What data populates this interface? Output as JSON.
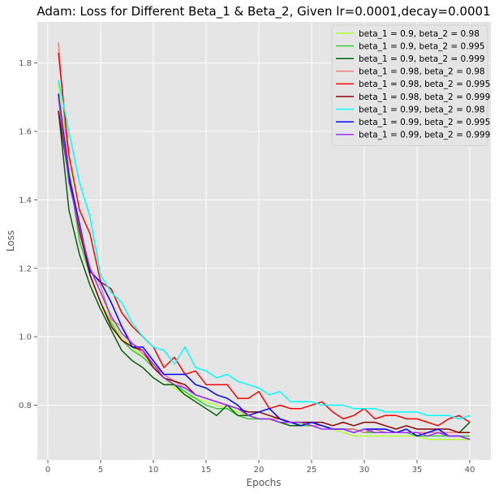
{
  "chart_data": {
    "type": "line",
    "title": "Adam: Loss for Different Beta_1 & Beta_2, Given lr=0.0001,decay=0.0001",
    "xlabel": "Epochs",
    "ylabel": "Loss",
    "xlim": [
      -1,
      42
    ],
    "ylim": [
      0.64,
      1.92
    ],
    "xticks": [
      0,
      5,
      10,
      15,
      20,
      25,
      30,
      35,
      40
    ],
    "yticks": [
      0.8,
      1.0,
      1.2,
      1.4,
      1.6,
      1.8
    ],
    "grid": true,
    "legend_position": "top-right",
    "x": [
      1,
      2,
      3,
      4,
      5,
      6,
      7,
      8,
      9,
      10,
      11,
      12,
      13,
      14,
      15,
      16,
      17,
      18,
      19,
      20,
      21,
      22,
      23,
      24,
      25,
      26,
      27,
      28,
      29,
      30,
      31,
      32,
      33,
      34,
      35,
      36,
      37,
      38,
      39,
      40
    ],
    "series": [
      {
        "name": "beta_1 = 0.9, beta_2 = 0.98",
        "color": "#adff2f",
        "values": [
          1.74,
          1.5,
          1.3,
          1.2,
          1.13,
          1.05,
          1.0,
          0.97,
          0.94,
          0.91,
          0.88,
          0.85,
          0.83,
          0.82,
          0.81,
          0.8,
          0.79,
          0.78,
          0.77,
          0.76,
          0.76,
          0.75,
          0.75,
          0.745,
          0.74,
          0.74,
          0.73,
          0.72,
          0.71,
          0.71,
          0.71,
          0.71,
          0.71,
          0.71,
          0.71,
          0.7,
          0.7,
          0.7,
          0.7,
          0.7
        ]
      },
      {
        "name": "beta_1 = 0.9, beta_2 = 0.995",
        "color": "#32cd32",
        "values": [
          1.7,
          1.48,
          1.28,
          1.18,
          1.1,
          1.04,
          0.99,
          0.96,
          0.94,
          0.91,
          0.88,
          0.86,
          0.84,
          0.82,
          0.8,
          0.79,
          0.79,
          0.77,
          0.76,
          0.76,
          0.76,
          0.75,
          0.75,
          0.74,
          0.74,
          0.74,
          0.73,
          0.73,
          0.73,
          0.72,
          0.72,
          0.72,
          0.72,
          0.72,
          0.71,
          0.71,
          0.71,
          0.71,
          0.71,
          0.71
        ]
      },
      {
        "name": "beta_1 = 0.9, beta_2 = 0.999",
        "color": "#006400",
        "values": [
          1.66,
          1.37,
          1.24,
          1.15,
          1.08,
          1.02,
          0.96,
          0.93,
          0.91,
          0.88,
          0.86,
          0.86,
          0.83,
          0.81,
          0.79,
          0.77,
          0.8,
          0.77,
          0.77,
          0.76,
          0.76,
          0.75,
          0.74,
          0.74,
          0.75,
          0.74,
          0.73,
          0.73,
          0.73,
          0.72,
          0.73,
          0.72,
          0.72,
          0.72,
          0.72,
          0.72,
          0.72,
          0.72,
          0.72,
          0.75
        ]
      },
      {
        "name": "beta_1 = 0.98, beta_2 = 0.98",
        "color": "#f08080",
        "values": [
          1.86,
          1.47,
          1.3,
          1.2,
          1.15,
          1.05,
          1.03,
          0.98,
          0.95,
          0.92,
          0.89,
          0.87,
          0.85,
          0.83,
          0.82,
          0.81,
          0.8,
          0.79,
          0.77,
          0.76,
          0.76,
          0.76,
          0.75,
          0.75,
          0.74,
          0.74,
          0.73,
          0.73,
          0.73,
          0.72,
          0.73,
          0.72,
          0.72,
          0.72,
          0.72,
          0.72,
          0.72,
          0.72,
          0.72,
          0.72
        ]
      },
      {
        "name": "beta_1 = 0.98, beta_2 = 0.995",
        "color": "#ff0000",
        "values": [
          1.83,
          1.53,
          1.37,
          1.3,
          1.16,
          1.14,
          1.07,
          1.03,
          1.0,
          0.97,
          0.91,
          0.94,
          0.89,
          0.9,
          0.86,
          0.86,
          0.86,
          0.82,
          0.82,
          0.84,
          0.79,
          0.8,
          0.79,
          0.79,
          0.8,
          0.81,
          0.78,
          0.76,
          0.77,
          0.79,
          0.76,
          0.77,
          0.77,
          0.76,
          0.76,
          0.75,
          0.74,
          0.76,
          0.77,
          0.75
        ]
      },
      {
        "name": "beta_1 = 0.98, beta_2 = 0.999",
        "color": "#8b0000",
        "values": [
          1.66,
          1.46,
          1.31,
          1.18,
          1.1,
          1.03,
          0.99,
          0.97,
          0.96,
          0.91,
          0.88,
          0.87,
          0.86,
          0.83,
          0.82,
          0.81,
          0.8,
          0.79,
          0.78,
          0.78,
          0.77,
          0.76,
          0.75,
          0.75,
          0.75,
          0.75,
          0.74,
          0.75,
          0.74,
          0.75,
          0.75,
          0.74,
          0.73,
          0.74,
          0.73,
          0.73,
          0.73,
          0.73,
          0.72,
          0.72
        ]
      },
      {
        "name": "beta_1 = 0.99, beta_2 = 0.98",
        "color": "#00ffff",
        "values": [
          1.75,
          1.6,
          1.45,
          1.35,
          1.18,
          1.13,
          1.1,
          1.04,
          1.0,
          0.97,
          0.96,
          0.92,
          0.97,
          0.91,
          0.9,
          0.88,
          0.89,
          0.87,
          0.86,
          0.85,
          0.83,
          0.84,
          0.81,
          0.81,
          0.81,
          0.8,
          0.8,
          0.8,
          0.79,
          0.79,
          0.79,
          0.78,
          0.78,
          0.78,
          0.78,
          0.77,
          0.77,
          0.77,
          0.76,
          0.77
        ]
      },
      {
        "name": "beta_1 = 0.99, beta_2 = 0.995",
        "color": "#0000ff",
        "values": [
          1.71,
          1.47,
          1.33,
          1.19,
          1.16,
          1.1,
          1.03,
          0.97,
          0.97,
          0.93,
          0.89,
          0.89,
          0.89,
          0.86,
          0.85,
          0.83,
          0.82,
          0.8,
          0.77,
          0.78,
          0.79,
          0.76,
          0.75,
          0.74,
          0.75,
          0.74,
          0.73,
          0.73,
          0.72,
          0.73,
          0.73,
          0.73,
          0.72,
          0.73,
          0.71,
          0.72,
          0.73,
          0.71,
          0.71,
          0.7
        ]
      },
      {
        "name": "beta_1 = 0.99, beta_2 = 0.999",
        "color": "#9b30ff",
        "values": [
          1.7,
          1.45,
          1.32,
          1.2,
          1.13,
          1.06,
          1.01,
          0.98,
          0.96,
          0.92,
          0.88,
          0.86,
          0.85,
          0.83,
          0.82,
          0.81,
          0.8,
          0.79,
          0.77,
          0.76,
          0.76,
          0.75,
          0.75,
          0.75,
          0.74,
          0.73,
          0.73,
          0.73,
          0.72,
          0.73,
          0.72,
          0.72,
          0.72,
          0.72,
          0.72,
          0.71,
          0.72,
          0.71,
          0.71,
          0.7
        ]
      }
    ]
  }
}
